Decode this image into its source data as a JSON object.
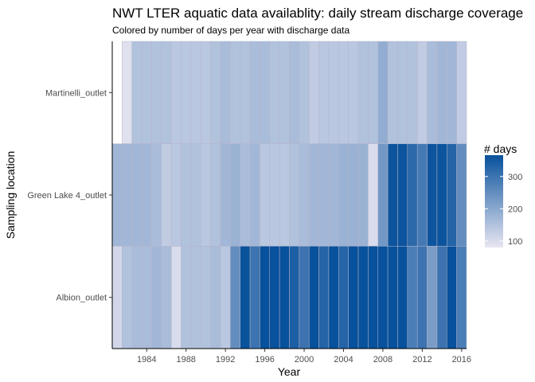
{
  "chart_data": {
    "type": "heatmap",
    "title": "NWT LTER aquatic data availablity: daily stream discharge coverage",
    "subtitle": "Colored by number of days per year with discharge data",
    "xlabel": "Year",
    "ylabel": "Sampling location",
    "legend_title": "# days",
    "legend_placement": "right",
    "grid": false,
    "xlim": [
      1981,
      2016
    ],
    "x_ticks": [
      1984,
      1988,
      1992,
      1996,
      2000,
      2004,
      2008,
      2012,
      2016
    ],
    "x_tick_labels": [
      "1984",
      "1988",
      "1992",
      "1996",
      "2000",
      "2004",
      "2008",
      "2012",
      "2016"
    ],
    "color_scale": {
      "min": 80,
      "max": 366,
      "low_color": "#e8e6f2",
      "high_color": "#08519c"
    },
    "legend_ticks": [
      100,
      200,
      300
    ],
    "legend_tick_labels": [
      "100",
      "200",
      "300"
    ],
    "categories": [
      "Martinelli_outlet",
      "Green Lake 4_outlet",
      "Albion_outlet"
    ],
    "series": [
      {
        "name": "Martinelli_outlet",
        "x": [
          1982,
          1983,
          1984,
          1985,
          1986,
          1987,
          1988,
          1989,
          1990,
          1991,
          1992,
          1993,
          1994,
          1995,
          1996,
          1997,
          1998,
          1999,
          2000,
          2001,
          2002,
          2003,
          2004,
          2005,
          2006,
          2007,
          2008,
          2009,
          2010,
          2011,
          2012,
          2013,
          2014,
          2015,
          2016
        ],
        "values": [
          90,
          150,
          150,
          150,
          150,
          140,
          140,
          140,
          140,
          150,
          160,
          150,
          150,
          160,
          160,
          150,
          150,
          160,
          150,
          130,
          140,
          140,
          140,
          140,
          150,
          150,
          190,
          150,
          150,
          150,
          130,
          160,
          170,
          170,
          130
        ]
      },
      {
        "name": "Green Lake 4_outlet",
        "x": [
          1981,
          1982,
          1983,
          1984,
          1985,
          1986,
          1987,
          1988,
          1989,
          1990,
          1991,
          1992,
          1993,
          1994,
          1995,
          1996,
          1997,
          1998,
          1999,
          2000,
          2001,
          2002,
          2003,
          2004,
          2005,
          2006,
          2007,
          2008,
          2009,
          2010,
          2011,
          2012,
          2013,
          2014,
          2015,
          2016
        ],
        "values": [
          170,
          170,
          170,
          170,
          160,
          130,
          140,
          150,
          150,
          140,
          150,
          170,
          180,
          160,
          170,
          140,
          140,
          140,
          150,
          160,
          170,
          170,
          170,
          180,
          180,
          180,
          100,
          230,
          360,
          360,
          320,
          290,
          360,
          360,
          330,
          250
        ]
      },
      {
        "name": "Albion_outlet",
        "x": [
          1981,
          1982,
          1983,
          1984,
          1985,
          1986,
          1987,
          1988,
          1989,
          1990,
          1991,
          1992,
          1993,
          1994,
          1995,
          1996,
          1997,
          1998,
          1999,
          2000,
          2001,
          2002,
          2003,
          2004,
          2005,
          2006,
          2007,
          2008,
          2009,
          2010,
          2011,
          2012,
          2013,
          2014,
          2015,
          2016
        ],
        "values": [
          110,
          150,
          160,
          160,
          170,
          160,
          100,
          150,
          150,
          150,
          160,
          140,
          250,
          365,
          300,
          366,
          366,
          366,
          340,
          300,
          366,
          330,
          366,
          330,
          366,
          366,
          366,
          366,
          366,
          366,
          280,
          300,
          220,
          300,
          366,
          280
        ]
      }
    ]
  }
}
